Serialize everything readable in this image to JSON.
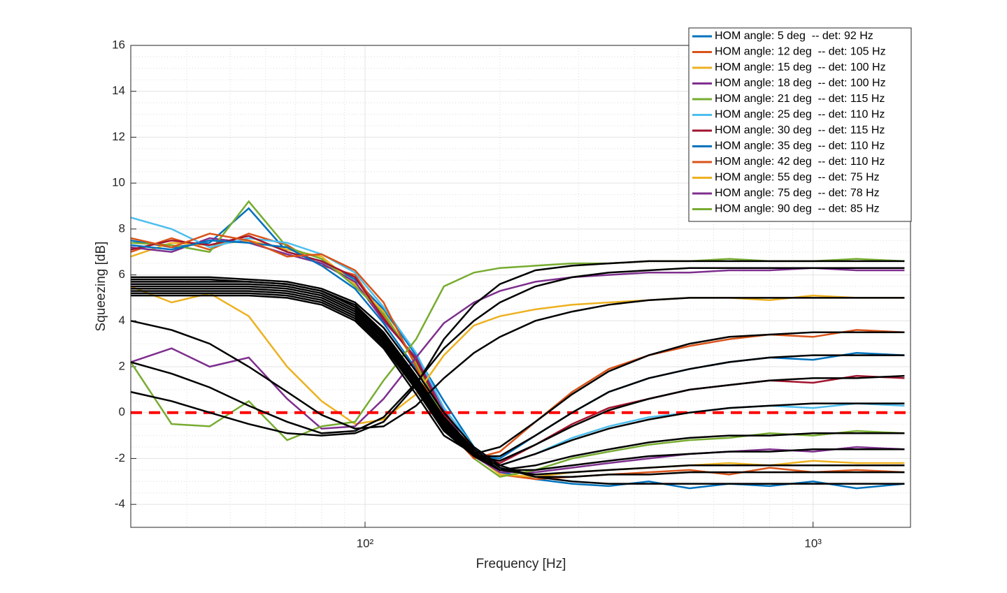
{
  "chart_data": {
    "type": "line",
    "xlabel": "Frequency [Hz]",
    "ylabel": "Squeezing [dB]",
    "xscale": "log",
    "xlim": [
      30,
      1650
    ],
    "ylim": [
      -5,
      16
    ],
    "xticks": [
      {
        "value": 100,
        "label": "10²"
      },
      {
        "value": 1000,
        "label": "10³"
      }
    ],
    "yticks": [
      -4,
      -2,
      0,
      2,
      4,
      6,
      8,
      10,
      12,
      14,
      16
    ],
    "grid": true,
    "minor_grid": true,
    "legend": "upper right",
    "x": [
      30,
      37,
      45,
      55,
      67,
      80,
      95,
      110,
      130,
      150,
      175,
      200,
      240,
      290,
      350,
      430,
      530,
      650,
      800,
      1000,
      1250,
      1600
    ],
    "series": [
      {
        "name": "HOM angle: 5 deg  -- det: 92 Hz",
        "color": "#0072BD",
        "values": [
          7.5,
          7.2,
          7.4,
          8.9,
          7.0,
          6.6,
          5.8,
          4.5,
          2.5,
          0.5,
          -1.5,
          -2.6,
          -2.9,
          -3.1,
          -3.2,
          -3.0,
          -3.3,
          -3.1,
          -3.2,
          -3.0,
          -3.3,
          -3.1
        ]
      },
      {
        "name": "HOM angle: 12 deg  -- det: 105 Hz",
        "color": "#D95319",
        "values": [
          7.0,
          7.6,
          7.1,
          7.8,
          7.3,
          6.4,
          6.0,
          4.2,
          2.3,
          0.2,
          -1.6,
          -2.7,
          -2.9,
          -2.8,
          -2.7,
          -2.6,
          -2.5,
          -2.7,
          -2.4,
          -2.6,
          -2.5,
          -2.6
        ]
      },
      {
        "name": "HOM angle: 15 deg  -- det: 100 Hz",
        "color": "#EDB120",
        "values": [
          6.8,
          7.4,
          7.3,
          7.5,
          7.1,
          6.8,
          5.6,
          4.4,
          2.1,
          -0.2,
          -1.8,
          -2.7,
          -2.8,
          -2.6,
          -2.5,
          -2.4,
          -2.3,
          -2.2,
          -2.3,
          -2.1,
          -2.2,
          -2.2
        ]
      },
      {
        "name": "HOM angle: 18 deg  -- det: 100 Hz",
        "color": "#7E2F8E",
        "values": [
          7.2,
          7.0,
          7.6,
          7.4,
          6.9,
          6.5,
          5.7,
          4.0,
          2.4,
          0.1,
          -1.9,
          -2.6,
          -2.6,
          -2.4,
          -2.2,
          -2.0,
          -1.8,
          -1.7,
          -1.6,
          -1.7,
          -1.5,
          -1.6
        ]
      },
      {
        "name": "HOM angle: 21 deg  -- det: 115 Hz",
        "color": "#77AC30",
        "values": [
          7.4,
          7.3,
          7.0,
          9.2,
          7.2,
          6.7,
          5.5,
          4.3,
          2.2,
          -0.3,
          -2.0,
          -2.8,
          -2.5,
          -2.0,
          -1.7,
          -1.4,
          -1.2,
          -1.1,
          -0.9,
          -1.0,
          -0.8,
          -0.9
        ]
      },
      {
        "name": "HOM angle: 25 deg  -- det: 110 Hz",
        "color": "#4DBEEE",
        "values": [
          8.5,
          8.0,
          7.2,
          7.6,
          7.4,
          6.9,
          6.1,
          4.6,
          2.6,
          0.2,
          -1.5,
          -2.3,
          -1.8,
          -1.1,
          -0.6,
          -0.2,
          0.0,
          0.2,
          0.3,
          0.2,
          0.4,
          0.3
        ]
      },
      {
        "name": "HOM angle: 30 deg  -- det: 115 Hz",
        "color": "#A2142F",
        "values": [
          7.1,
          7.5,
          7.3,
          7.7,
          7.0,
          6.6,
          5.9,
          4.1,
          2.3,
          -0.1,
          -1.8,
          -2.2,
          -1.4,
          -0.5,
          0.2,
          0.6,
          1.0,
          1.2,
          1.4,
          1.3,
          1.6,
          1.5
        ]
      },
      {
        "name": "HOM angle: 35 deg  -- det: 110 Hz",
        "color": "#0072BD",
        "values": [
          7.3,
          7.1,
          7.5,
          7.4,
          7.2,
          6.4,
          5.4,
          3.9,
          1.9,
          -0.4,
          -1.9,
          -2.0,
          -1.0,
          0.0,
          0.9,
          1.5,
          1.9,
          2.2,
          2.4,
          2.3,
          2.6,
          2.5
        ]
      },
      {
        "name": "HOM angle: 42 deg  -- det: 110 Hz",
        "color": "#D95319",
        "values": [
          7.6,
          7.2,
          7.8,
          7.5,
          6.8,
          6.9,
          6.2,
          4.8,
          2.0,
          -0.6,
          -2.0,
          -1.7,
          -0.4,
          0.9,
          1.9,
          2.5,
          2.9,
          3.2,
          3.4,
          3.3,
          3.6,
          3.5
        ]
      },
      {
        "name": "HOM angle: 55 deg  -- det: 75 Hz",
        "color": "#EDB120",
        "values": [
          5.5,
          4.8,
          5.2,
          4.2,
          2.0,
          0.5,
          -0.5,
          -0.3,
          0.8,
          2.5,
          3.8,
          4.2,
          4.5,
          4.7,
          4.8,
          4.9,
          5.0,
          5.0,
          4.9,
          5.1,
          5.0,
          5.0
        ]
      },
      {
        "name": "HOM angle: 75 deg  -- det: 78 Hz",
        "color": "#7E2F8E",
        "values": [
          2.2,
          2.8,
          2.0,
          2.4,
          0.6,
          -0.7,
          -0.6,
          0.6,
          2.4,
          3.9,
          4.8,
          5.3,
          5.7,
          5.9,
          6.0,
          6.1,
          6.1,
          6.2,
          6.2,
          6.3,
          6.2,
          6.2
        ]
      },
      {
        "name": "HOM angle: 90 deg  -- det: 85 Hz",
        "color": "#77AC30",
        "values": [
          2.2,
          -0.5,
          -0.6,
          0.5,
          -1.2,
          -0.6,
          -0.4,
          1.4,
          3.2,
          5.5,
          6.1,
          6.3,
          6.4,
          6.5,
          6.5,
          6.6,
          6.6,
          6.7,
          6.6,
          6.6,
          6.7,
          6.6
        ]
      }
    ],
    "fits": {
      "color": "#000000",
      "curves": [
        [
          5.9,
          5.9,
          5.9,
          5.8,
          5.7,
          5.4,
          4.8,
          3.7,
          1.8,
          0.0,
          -1.5,
          -2.3,
          -2.8,
          -3.0,
          -3.1,
          -3.1,
          -3.1,
          -3.1,
          -3.1,
          -3.1,
          -3.1,
          -3.1
        ],
        [
          5.8,
          5.8,
          5.8,
          5.7,
          5.6,
          5.3,
          4.7,
          3.5,
          1.6,
          -0.2,
          -1.6,
          -2.4,
          -2.8,
          -2.8,
          -2.7,
          -2.7,
          -2.6,
          -2.6,
          -2.6,
          -2.6,
          -2.6,
          -2.6
        ],
        [
          5.7,
          5.7,
          5.7,
          5.7,
          5.6,
          5.3,
          4.6,
          3.4,
          1.5,
          -0.3,
          -1.7,
          -2.5,
          -2.7,
          -2.6,
          -2.5,
          -2.4,
          -2.3,
          -2.3,
          -2.3,
          -2.3,
          -2.3,
          -2.3
        ],
        [
          5.6,
          5.6,
          5.6,
          5.6,
          5.5,
          5.2,
          4.5,
          3.3,
          1.4,
          -0.4,
          -1.8,
          -2.5,
          -2.5,
          -2.3,
          -2.1,
          -1.9,
          -1.8,
          -1.7,
          -1.7,
          -1.6,
          -1.6,
          -1.6
        ],
        [
          5.5,
          5.5,
          5.5,
          5.5,
          5.4,
          5.1,
          4.4,
          3.2,
          1.3,
          -0.5,
          -1.9,
          -2.5,
          -2.3,
          -1.9,
          -1.6,
          -1.3,
          -1.1,
          -1.0,
          -1.0,
          -0.9,
          -0.9,
          -0.9
        ],
        [
          5.4,
          5.4,
          5.4,
          5.4,
          5.3,
          5.0,
          4.3,
          3.1,
          1.2,
          -0.6,
          -1.9,
          -2.3,
          -1.8,
          -1.2,
          -0.7,
          -0.3,
          0.0,
          0.2,
          0.3,
          0.4,
          0.4,
          0.4
        ],
        [
          5.3,
          5.3,
          5.3,
          5.3,
          5.2,
          4.9,
          4.2,
          3.0,
          1.1,
          -0.7,
          -1.9,
          -2.1,
          -1.4,
          -0.6,
          0.1,
          0.6,
          1.0,
          1.2,
          1.4,
          1.5,
          1.5,
          1.6
        ],
        [
          5.2,
          5.2,
          5.2,
          5.2,
          5.1,
          4.8,
          4.1,
          2.9,
          1.0,
          -0.8,
          -1.9,
          -1.9,
          -1.0,
          0.0,
          0.9,
          1.5,
          1.9,
          2.2,
          2.4,
          2.5,
          2.5,
          2.5
        ],
        [
          5.1,
          5.1,
          5.1,
          5.1,
          5.0,
          4.7,
          4.0,
          2.8,
          0.8,
          -1.0,
          -1.8,
          -1.5,
          -0.4,
          0.8,
          1.8,
          2.5,
          3.0,
          3.3,
          3.4,
          3.5,
          3.5,
          3.5
        ],
        [
          4.0,
          3.6,
          3.0,
          2.0,
          0.9,
          -0.1,
          -0.7,
          -0.6,
          0.3,
          1.5,
          2.6,
          3.3,
          4.0,
          4.4,
          4.7,
          4.9,
          5.0,
          5.0,
          5.0,
          5.0,
          5.0,
          5.0
        ],
        [
          2.2,
          1.7,
          1.1,
          0.3,
          -0.4,
          -0.9,
          -0.8,
          -0.2,
          1.3,
          2.8,
          4.0,
          4.8,
          5.5,
          5.9,
          6.1,
          6.2,
          6.3,
          6.3,
          6.3,
          6.3,
          6.3,
          6.3
        ],
        [
          0.9,
          0.5,
          0.0,
          -0.5,
          -0.9,
          -1.0,
          -0.9,
          -0.4,
          1.2,
          3.2,
          4.7,
          5.6,
          6.2,
          6.4,
          6.5,
          6.6,
          6.6,
          6.6,
          6.6,
          6.6,
          6.6,
          6.6
        ]
      ]
    },
    "reference_line": {
      "value": 0,
      "color": "#FF0000",
      "style": "dashed"
    }
  }
}
